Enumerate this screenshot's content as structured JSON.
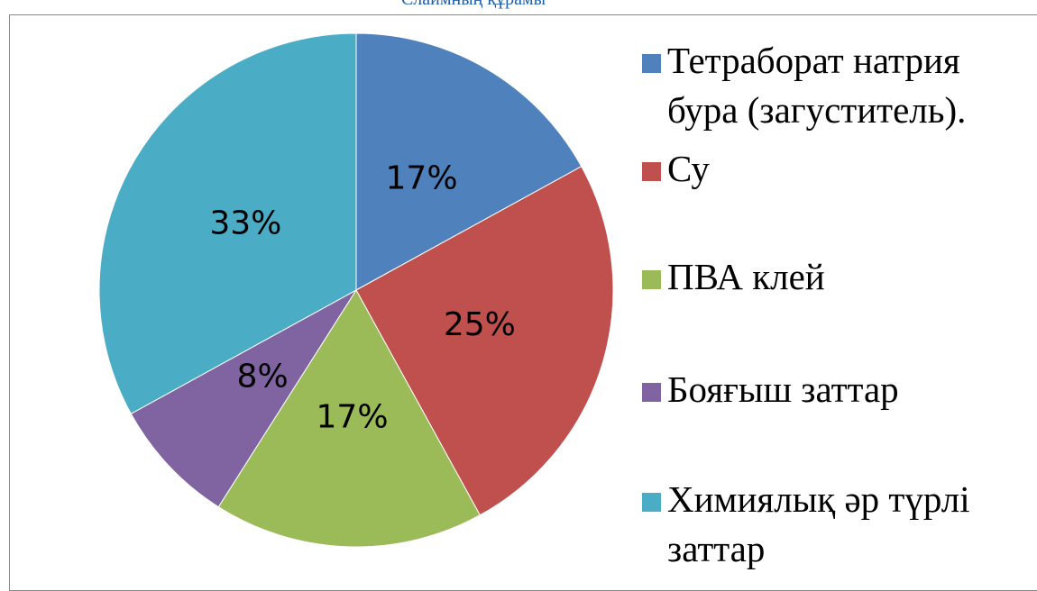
{
  "chart_data": {
    "type": "pie",
    "title": "Слаймның құрамы",
    "categories": [
      "Тетраборат натрия бура (загуститель).",
      "Су",
      "ПВА клей",
      "Бояғыш заттар",
      "Химиялық әр түрлі заттар"
    ],
    "values": [
      17,
      25,
      17,
      8,
      33
    ],
    "value_labels": [
      "17%",
      "25%",
      "17%",
      "8%",
      "33%"
    ],
    "colors": [
      "#4f81bd",
      "#c0504d",
      "#9bbb59",
      "#8064a2",
      "#4bacc6"
    ],
    "legend": "right"
  }
}
